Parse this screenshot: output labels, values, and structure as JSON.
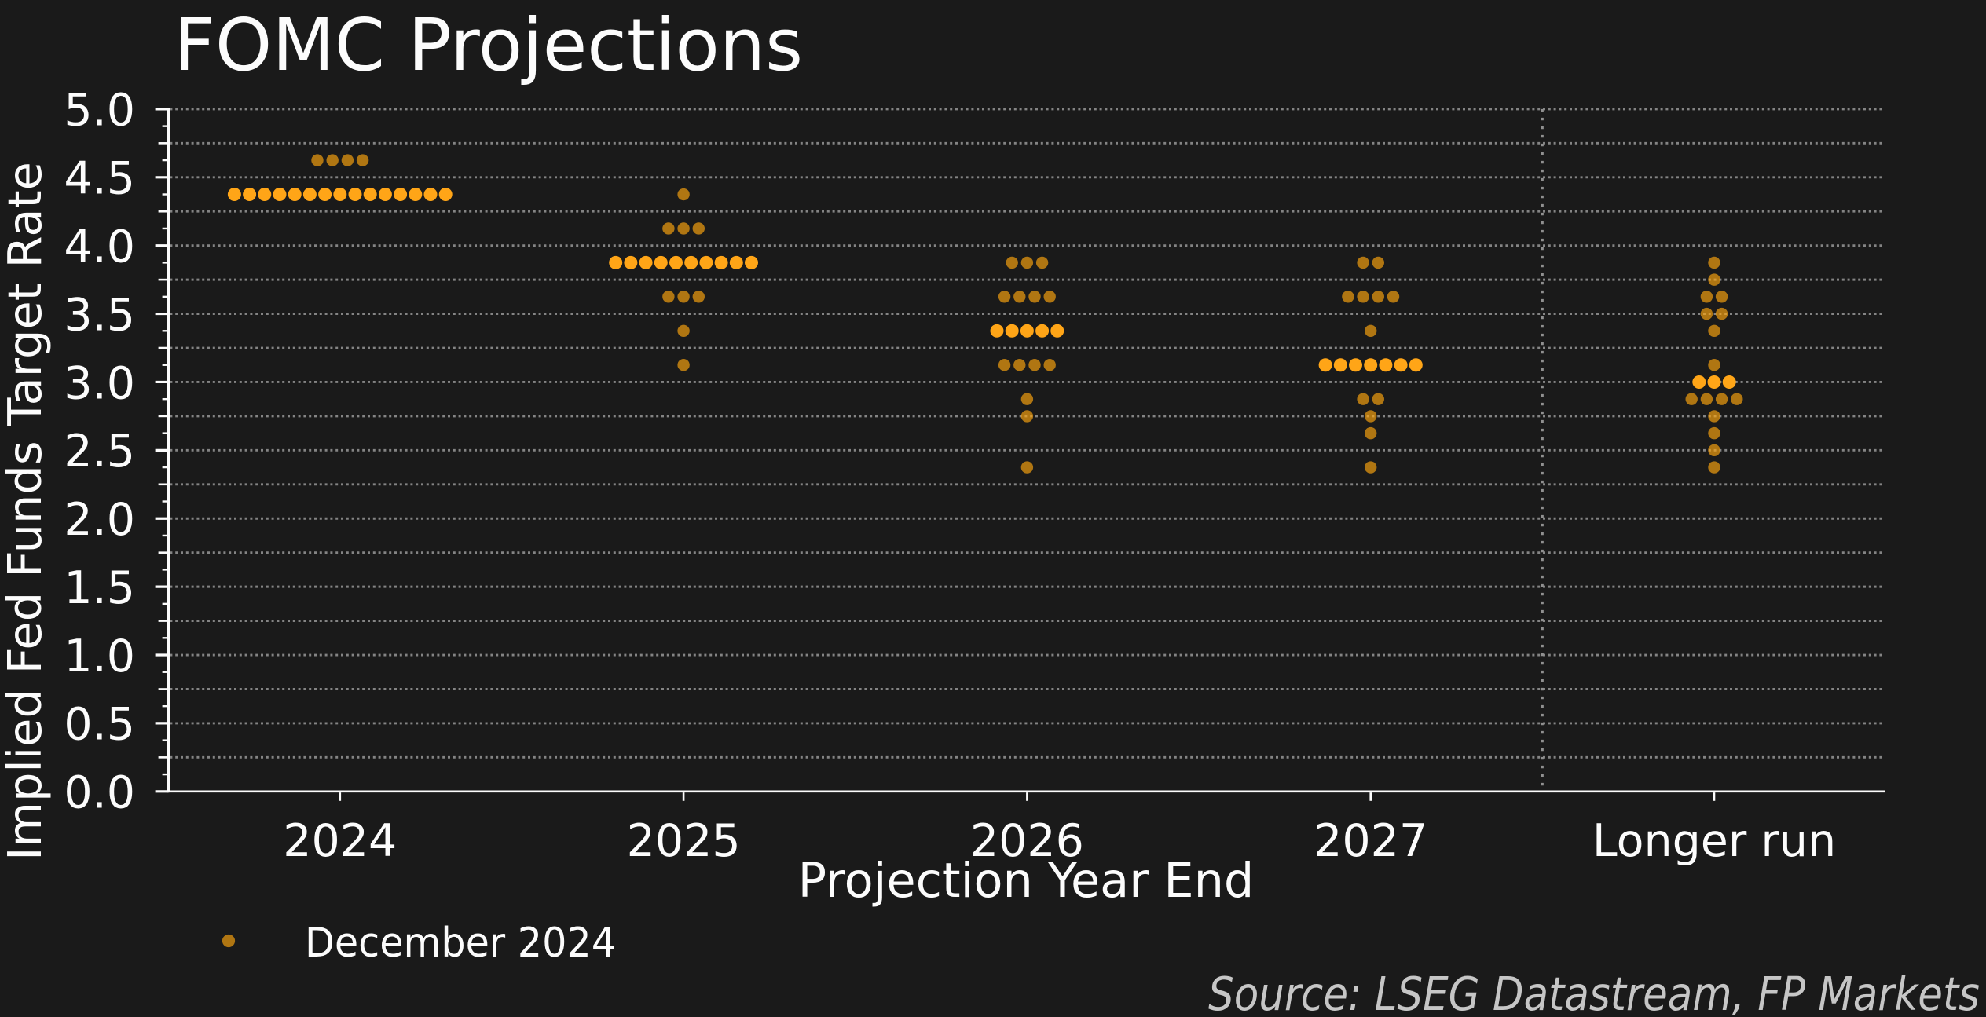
{
  "chart_data": {
    "type": "scatter",
    "subtype": "dot-plot",
    "title": "FOMC Projections",
    "ylabel": "Implied Fed Funds Target Rate",
    "xlabel": "Projection Year End",
    "categories": [
      "2024",
      "2025",
      "2026",
      "2027",
      "Longer run"
    ],
    "ylim": [
      0.0,
      5.0
    ],
    "ytick_major_step": 0.5,
    "ytick_minor_step": 0.125,
    "ytick_labels": [
      "0.0",
      "0.5",
      "1.0",
      "1.5",
      "2.0",
      "2.5",
      "3.0",
      "3.5",
      "4.0",
      "4.5",
      "5.0"
    ],
    "grid": "dotted horizontal lines every 0.25, dotted vertical separator before Longer run",
    "legend_position": "bottom-left",
    "legend": {
      "label": "December 2024",
      "marker": "dot"
    },
    "source_note": "Source: LSEG Datastream, FP Markets",
    "series": [
      {
        "name": "December 2024",
        "columns": [
          {
            "category": "2024",
            "dots": [
              {
                "rate": 4.625,
                "count": 4
              },
              {
                "rate": 4.375,
                "count": 15,
                "median": true
              }
            ]
          },
          {
            "category": "2025",
            "dots": [
              {
                "rate": 4.375,
                "count": 1
              },
              {
                "rate": 4.125,
                "count": 3
              },
              {
                "rate": 3.875,
                "count": 10,
                "median": true
              },
              {
                "rate": 3.625,
                "count": 3
              },
              {
                "rate": 3.375,
                "count": 1
              },
              {
                "rate": 3.125,
                "count": 1
              }
            ]
          },
          {
            "category": "2026",
            "dots": [
              {
                "rate": 3.875,
                "count": 3
              },
              {
                "rate": 3.625,
                "count": 4
              },
              {
                "rate": 3.375,
                "count": 5,
                "median": true
              },
              {
                "rate": 3.125,
                "count": 4
              },
              {
                "rate": 2.875,
                "count": 1
              },
              {
                "rate": 2.75,
                "count": 1
              },
              {
                "rate": 2.375,
                "count": 1
              }
            ]
          },
          {
            "category": "2027",
            "dots": [
              {
                "rate": 3.875,
                "count": 2
              },
              {
                "rate": 3.625,
                "count": 4
              },
              {
                "rate": 3.375,
                "count": 1
              },
              {
                "rate": 3.125,
                "count": 7,
                "median": true
              },
              {
                "rate": 2.875,
                "count": 2
              },
              {
                "rate": 2.75,
                "count": 1
              },
              {
                "rate": 2.625,
                "count": 1
              },
              {
                "rate": 2.375,
                "count": 1
              }
            ]
          },
          {
            "category": "Longer run",
            "dots": [
              {
                "rate": 3.875,
                "count": 1
              },
              {
                "rate": 3.75,
                "count": 1
              },
              {
                "rate": 3.625,
                "count": 2
              },
              {
                "rate": 3.5,
                "count": 2
              },
              {
                "rate": 3.375,
                "count": 1
              },
              {
                "rate": 3.125,
                "count": 1
              },
              {
                "rate": 3.0,
                "count": 3,
                "median": true
              },
              {
                "rate": 2.875,
                "count": 4
              },
              {
                "rate": 2.75,
                "count": 1
              },
              {
                "rate": 2.625,
                "count": 1
              },
              {
                "rate": 2.5,
                "count": 1
              },
              {
                "rate": 2.375,
                "count": 1
              }
            ]
          }
        ]
      }
    ],
    "colors": {
      "background": "#1a1a1a",
      "dot": "#ffa70f",
      "dot_opacity": 0.66,
      "dot_median": "#ffa517",
      "grid": "#848484",
      "separator": "#909090",
      "axis": "#fcfcfc",
      "text": "#fcfcfc",
      "source_text": "#c6c6c6"
    }
  }
}
